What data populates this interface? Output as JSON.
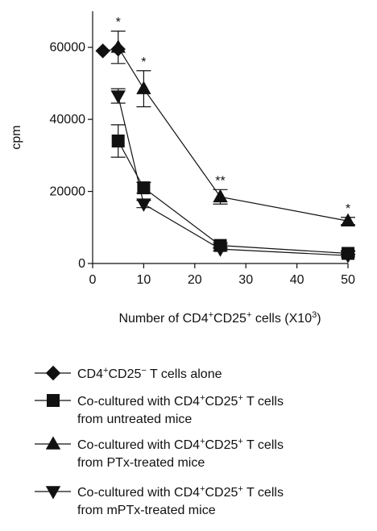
{
  "chart_data": {
    "type": "line",
    "xlabel": {
      "pre": "Number of CD4",
      "sup1": "+",
      "mid": "CD25",
      "sup2": "+",
      "post": " cells (X10",
      "sup3": "3",
      "end": ")"
    },
    "ylabel": "cpm",
    "xlim": [
      0,
      50
    ],
    "ylim": [
      0,
      70000
    ],
    "xticks": [
      0,
      10,
      20,
      30,
      40,
      50
    ],
    "yticks": [
      0,
      20000,
      40000,
      60000
    ],
    "grid": false,
    "legend_position": "below",
    "series": [
      {
        "marker": "diamond",
        "legend": [
          {
            "text": "CD4"
          },
          {
            "text": "+",
            "sup": true
          },
          {
            "text": "CD25"
          },
          {
            "text": "−",
            "sup": true
          },
          {
            "text": " T cells alone"
          }
        ],
        "x": [
          2,
          5
        ],
        "y": [
          59000,
          59500
        ],
        "err": [
          0,
          0
        ],
        "significance": [
          "",
          ""
        ]
      },
      {
        "marker": "square",
        "legend": [
          {
            "text": "Co-cultured with CD4"
          },
          {
            "text": "+",
            "sup": true
          },
          {
            "text": "CD25"
          },
          {
            "text": "+",
            "sup": true
          },
          {
            "text": " T cells"
          },
          {
            "text": "from untreated mice",
            "line2": true
          }
        ],
        "x": [
          5,
          10,
          25,
          50
        ],
        "y": [
          34000,
          21000,
          5000,
          2800
        ],
        "err": [
          4500,
          1500,
          800,
          500
        ],
        "significance": [
          "",
          "",
          "",
          ""
        ]
      },
      {
        "marker": "triangle-up",
        "legend": [
          {
            "text": "Co-cultured with CD4"
          },
          {
            "text": "+",
            "sup": true
          },
          {
            "text": "CD25"
          },
          {
            "text": "+",
            "sup": true
          },
          {
            "text": " T cells"
          },
          {
            "text": "from PTx-treated mice",
            "line2": true
          }
        ],
        "x": [
          5,
          10,
          25,
          50
        ],
        "y": [
          60000,
          48500,
          18500,
          11800
        ],
        "err": [
          4500,
          5000,
          2000,
          1000
        ],
        "significance": [
          "*",
          "*",
          "**",
          "*"
        ]
      },
      {
        "marker": "triangle-down",
        "legend": [
          {
            "text": "Co-cultured with CD4"
          },
          {
            "text": "+",
            "sup": true
          },
          {
            "text": "CD25"
          },
          {
            "text": "+",
            "sup": true
          },
          {
            "text": " T cells"
          },
          {
            "text": "from mPTx-treated mice",
            "line2": true
          }
        ],
        "x": [
          5,
          10,
          25,
          50
        ],
        "y": [
          46500,
          16500,
          4000,
          2200
        ],
        "err": [
          2000,
          1000,
          500,
          400
        ],
        "significance": [
          "",
          "",
          "",
          ""
        ]
      }
    ]
  },
  "colors": {
    "ink": "#111111",
    "background": "#ffffff"
  }
}
